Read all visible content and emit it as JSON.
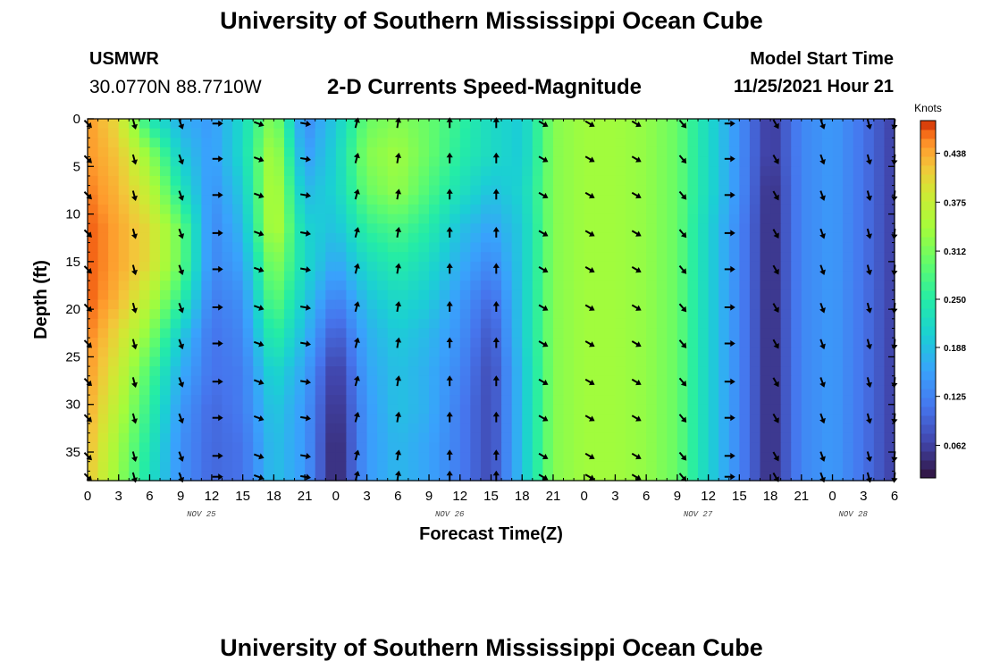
{
  "page": {
    "title": "University of Southern Mississippi Ocean Cube",
    "title_repeat": "University of Southern Mississippi Ocean Cube",
    "station": "USMWR",
    "location": "30.0770N  88.7710W",
    "subtitle": "2-D Currents Speed-Magnitude",
    "start_label": "Model Start Time",
    "start_value": "11/25/2021 Hour 21"
  },
  "chart_data": {
    "type": "heatmap",
    "title": "2-D Currents Speed-Magnitude",
    "xlabel": "Forecast Time(Z)",
    "ylabel": "Depth (ft)",
    "x_range_hours": [
      0,
      78
    ],
    "ylim": [
      0,
      38
    ],
    "x_tick_labels": [
      "0",
      "3",
      "6",
      "9",
      "12",
      "15",
      "18",
      "21",
      "0",
      "3",
      "6",
      "9",
      "12",
      "15",
      "18",
      "21",
      "0",
      "3",
      "6",
      "9",
      "12",
      "15",
      "18",
      "21",
      "0",
      "3",
      "6"
    ],
    "y_ticks": [
      0,
      5,
      10,
      15,
      20,
      25,
      30,
      35
    ],
    "date_labels": [
      {
        "hour": 11,
        "label": "NOV 25"
      },
      {
        "hour": 35,
        "label": "NOV 26"
      },
      {
        "hour": 59,
        "label": "NOV 27"
      },
      {
        "hour": 74,
        "label": "NOV 28"
      }
    ],
    "colorbar": {
      "label": "Knots",
      "min": 0.02,
      "max": 0.48,
      "ticks": [
        "0.062",
        "0.125",
        "0.188",
        "0.250",
        "0.312",
        "0.375",
        "0.438"
      ],
      "tick_values": [
        0.062,
        0.125,
        0.188,
        0.25,
        0.312,
        0.375,
        0.438
      ]
    },
    "depths": [
      0,
      3.8,
      7.6,
      11.4,
      15.2,
      19,
      22.8,
      26.6,
      30.4,
      34.2,
      38
    ],
    "times": [
      0,
      3,
      6,
      9,
      12,
      15,
      18,
      21,
      24,
      27,
      30,
      33,
      36,
      39,
      42,
      45,
      48,
      51,
      54,
      57,
      60,
      63,
      66,
      69,
      72,
      75,
      78
    ],
    "speed_by_depth": [
      [
        0.45,
        0.4,
        0.24,
        0.17,
        0.15,
        0.22,
        0.33,
        0.13,
        0.2,
        0.3,
        0.32,
        0.3,
        0.26,
        0.22,
        0.2,
        0.32,
        0.34,
        0.34,
        0.33,
        0.3,
        0.22,
        0.14,
        0.05,
        0.13,
        0.15,
        0.11,
        0.06
      ],
      [
        0.45,
        0.42,
        0.33,
        0.2,
        0.15,
        0.22,
        0.36,
        0.15,
        0.21,
        0.32,
        0.34,
        0.3,
        0.25,
        0.22,
        0.2,
        0.32,
        0.34,
        0.34,
        0.33,
        0.3,
        0.22,
        0.14,
        0.05,
        0.13,
        0.15,
        0.11,
        0.06
      ],
      [
        0.46,
        0.43,
        0.37,
        0.24,
        0.14,
        0.2,
        0.37,
        0.18,
        0.21,
        0.3,
        0.33,
        0.28,
        0.23,
        0.19,
        0.21,
        0.32,
        0.34,
        0.34,
        0.33,
        0.3,
        0.22,
        0.14,
        0.04,
        0.13,
        0.15,
        0.11,
        0.06
      ],
      [
        0.47,
        0.44,
        0.4,
        0.3,
        0.13,
        0.18,
        0.37,
        0.21,
        0.19,
        0.26,
        0.28,
        0.25,
        0.19,
        0.16,
        0.2,
        0.32,
        0.34,
        0.34,
        0.33,
        0.3,
        0.21,
        0.13,
        0.04,
        0.13,
        0.15,
        0.11,
        0.06
      ],
      [
        0.47,
        0.44,
        0.4,
        0.3,
        0.13,
        0.16,
        0.33,
        0.22,
        0.16,
        0.22,
        0.25,
        0.22,
        0.17,
        0.13,
        0.2,
        0.32,
        0.34,
        0.34,
        0.33,
        0.3,
        0.21,
        0.13,
        0.04,
        0.13,
        0.15,
        0.11,
        0.06
      ],
      [
        0.47,
        0.43,
        0.36,
        0.26,
        0.12,
        0.14,
        0.3,
        0.2,
        0.12,
        0.19,
        0.22,
        0.2,
        0.15,
        0.1,
        0.2,
        0.32,
        0.34,
        0.34,
        0.33,
        0.3,
        0.21,
        0.13,
        0.04,
        0.13,
        0.15,
        0.11,
        0.06
      ],
      [
        0.46,
        0.4,
        0.32,
        0.2,
        0.11,
        0.13,
        0.26,
        0.18,
        0.08,
        0.17,
        0.2,
        0.18,
        0.14,
        0.08,
        0.2,
        0.32,
        0.34,
        0.34,
        0.33,
        0.3,
        0.21,
        0.13,
        0.04,
        0.13,
        0.15,
        0.11,
        0.06
      ],
      [
        0.45,
        0.38,
        0.28,
        0.17,
        0.11,
        0.12,
        0.22,
        0.16,
        0.05,
        0.16,
        0.19,
        0.17,
        0.13,
        0.07,
        0.19,
        0.32,
        0.34,
        0.34,
        0.33,
        0.3,
        0.21,
        0.13,
        0.04,
        0.13,
        0.15,
        0.11,
        0.06
      ],
      [
        0.44,
        0.36,
        0.26,
        0.15,
        0.1,
        0.12,
        0.2,
        0.15,
        0.04,
        0.15,
        0.19,
        0.17,
        0.12,
        0.07,
        0.19,
        0.32,
        0.34,
        0.34,
        0.33,
        0.3,
        0.21,
        0.13,
        0.04,
        0.13,
        0.15,
        0.11,
        0.06
      ],
      [
        0.43,
        0.34,
        0.24,
        0.14,
        0.1,
        0.11,
        0.19,
        0.15,
        0.03,
        0.15,
        0.18,
        0.16,
        0.12,
        0.07,
        0.19,
        0.32,
        0.34,
        0.34,
        0.33,
        0.3,
        0.21,
        0.13,
        0.04,
        0.13,
        0.15,
        0.11,
        0.06
      ],
      [
        0.42,
        0.33,
        0.23,
        0.14,
        0.1,
        0.11,
        0.19,
        0.15,
        0.03,
        0.15,
        0.18,
        0.16,
        0.12,
        0.07,
        0.19,
        0.32,
        0.34,
        0.34,
        0.33,
        0.3,
        0.21,
        0.13,
        0.04,
        0.13,
        0.15,
        0.11,
        0.06
      ]
    ],
    "arrow_direction_deg_by_time": [
      315,
      330,
      345,
      340,
      270,
      270,
      290,
      280,
      180,
      195,
      190,
      180,
      180,
      180,
      150,
      300,
      300,
      300,
      300,
      320,
      300,
      270,
      330,
      330,
      340,
      345,
      5
    ],
    "arrow_times": [
      0,
      4.5,
      9,
      12.5,
      16.5,
      21,
      26,
      30,
      35,
      39.5,
      44,
      48.5,
      53,
      57.5,
      62,
      66.5,
      71,
      75.5,
      78
    ]
  }
}
